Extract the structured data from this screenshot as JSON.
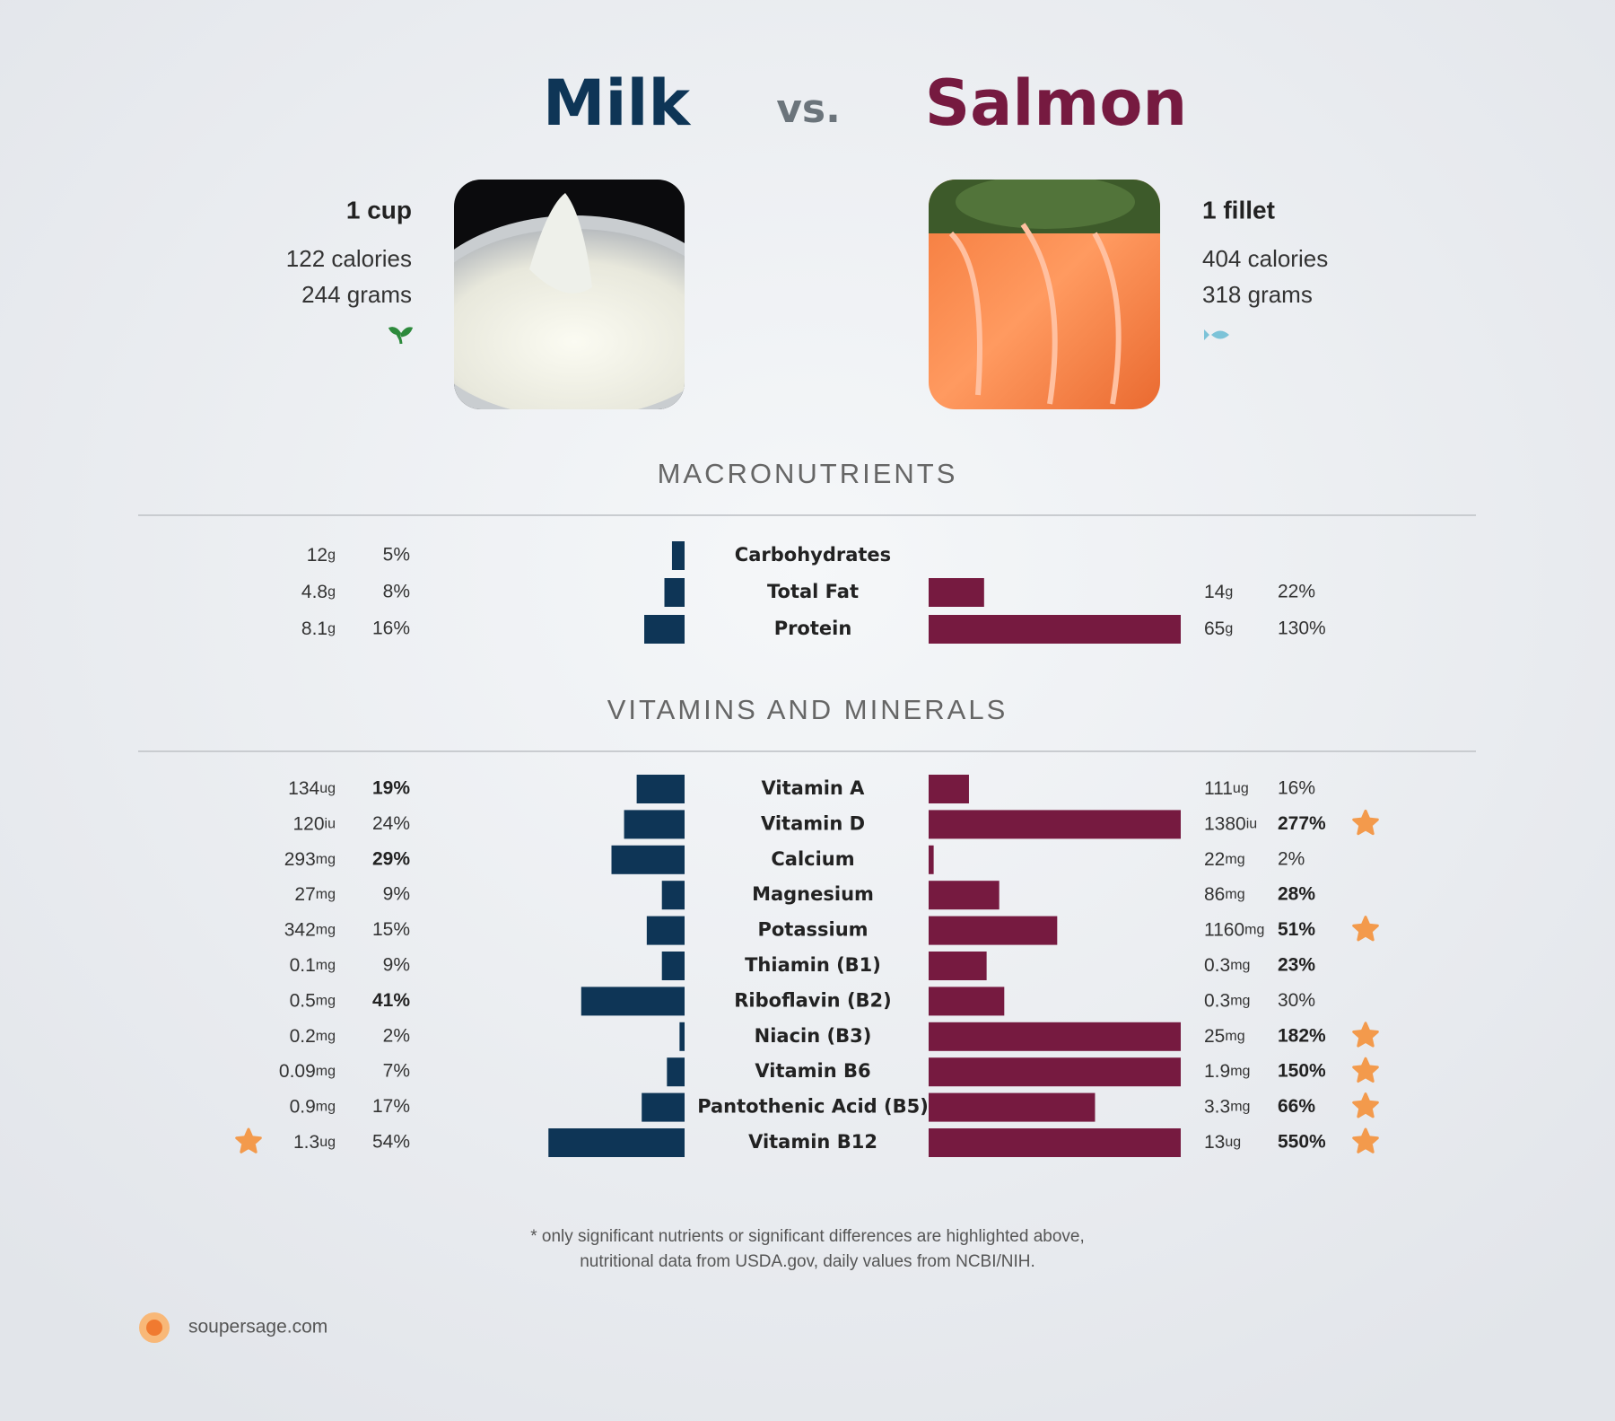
{
  "header": {
    "left": "Milk",
    "vs": "vs.",
    "right": "Salmon"
  },
  "foods": [
    {
      "serving": "1 cup",
      "calories": "122 calories",
      "grams": "244 grams",
      "color": "#0e3556"
    },
    {
      "serving": "1 fillet",
      "calories": "404 calories",
      "grams": "318 grams",
      "color": "#761a40"
    }
  ],
  "xlim": [
    0,
    100
  ],
  "sections": [
    {
      "title": "MACRONUTRIENTS",
      "rows": [
        {
          "name": "Carbohydrates",
          "left": {
            "amount": 12,
            "unit": "g",
            "pct": 5,
            "pct_label": "5%",
            "bold": false,
            "star": false
          },
          "right": null
        },
        {
          "name": "Total Fat",
          "left": {
            "amount": 4.8,
            "unit": "g",
            "pct": 8,
            "pct_label": "8%",
            "bold": false,
            "star": false
          },
          "right": {
            "amount": 14,
            "unit": "g",
            "pct": 22,
            "pct_label": "22%",
            "bold": false,
            "star": false
          }
        },
        {
          "name": "Protein",
          "left": {
            "amount": 8.1,
            "unit": "g",
            "pct": 16,
            "pct_label": "16%",
            "bold": false,
            "star": false
          },
          "right": {
            "amount": 65,
            "unit": "g",
            "pct": 130,
            "pct_label": "130%",
            "bold": false,
            "star": false
          }
        }
      ]
    },
    {
      "title": "VITAMINS AND MINERALS",
      "rows": [
        {
          "name": "Vitamin A",
          "left": {
            "amount": 134,
            "unit": "ug",
            "pct": 19,
            "pct_label": "19%",
            "bold": true,
            "star": false
          },
          "right": {
            "amount": 111,
            "unit": "ug",
            "pct": 16,
            "pct_label": "16%",
            "bold": false,
            "star": false
          }
        },
        {
          "name": "Vitamin D",
          "left": {
            "amount": 120,
            "unit": "iu",
            "pct": 24,
            "pct_label": "24%",
            "bold": false,
            "star": false
          },
          "right": {
            "amount": 1380,
            "unit": "iu",
            "pct": 277,
            "pct_label": "277%",
            "bold": true,
            "star": true
          }
        },
        {
          "name": "Calcium",
          "left": {
            "amount": 293,
            "unit": "mg",
            "pct": 29,
            "pct_label": "29%",
            "bold": true,
            "star": false
          },
          "right": {
            "amount": 22,
            "unit": "mg",
            "pct": 2,
            "pct_label": "2%",
            "bold": false,
            "star": false
          }
        },
        {
          "name": "Magnesium",
          "left": {
            "amount": 27,
            "unit": "mg",
            "pct": 9,
            "pct_label": "9%",
            "bold": false,
            "star": false
          },
          "right": {
            "amount": 86,
            "unit": "mg",
            "pct": 28,
            "pct_label": "28%",
            "bold": true,
            "star": false
          }
        },
        {
          "name": "Potassium",
          "left": {
            "amount": 342,
            "unit": "mg",
            "pct": 15,
            "pct_label": "15%",
            "bold": false,
            "star": false
          },
          "right": {
            "amount": 1160,
            "unit": "mg",
            "pct": 51,
            "pct_label": "51%",
            "bold": true,
            "star": true
          }
        },
        {
          "name": "Thiamin (B1)",
          "left": {
            "amount": 0.1,
            "unit": "mg",
            "pct": 9,
            "pct_label": "9%",
            "bold": false,
            "star": false
          },
          "right": {
            "amount": 0.3,
            "unit": "mg",
            "pct": 23,
            "pct_label": "23%",
            "bold": true,
            "star": false
          }
        },
        {
          "name": "Riboflavin (B2)",
          "left": {
            "amount": 0.5,
            "unit": "mg",
            "pct": 41,
            "pct_label": "41%",
            "bold": true,
            "star": false
          },
          "right": {
            "amount": 0.3,
            "unit": "mg",
            "pct": 30,
            "pct_label": "30%",
            "bold": false,
            "star": false
          }
        },
        {
          "name": "Niacin (B3)",
          "left": {
            "amount": 0.2,
            "unit": "mg",
            "pct": 2,
            "pct_label": "2%",
            "bold": false,
            "star": false
          },
          "right": {
            "amount": 25,
            "unit": "mg",
            "pct": 182,
            "pct_label": "182%",
            "bold": true,
            "star": true
          }
        },
        {
          "name": "Vitamin B6",
          "left": {
            "amount": 0.09,
            "unit": "mg",
            "pct": 7,
            "pct_label": "7%",
            "bold": false,
            "star": false
          },
          "right": {
            "amount": 1.9,
            "unit": "mg",
            "pct": 150,
            "pct_label": "150%",
            "bold": true,
            "star": true
          }
        },
        {
          "name": "Pantothenic Acid (B5)",
          "left": {
            "amount": 0.9,
            "unit": "mg",
            "pct": 17,
            "pct_label": "17%",
            "bold": false,
            "star": false
          },
          "right": {
            "amount": 3.3,
            "unit": "mg",
            "pct": 66,
            "pct_label": "66%",
            "bold": true,
            "star": true
          }
        },
        {
          "name": "Vitamin B12",
          "left": {
            "amount": 1.3,
            "unit": "ug",
            "pct": 54,
            "pct_label": "54%",
            "bold": false,
            "star": true
          },
          "right": {
            "amount": 13,
            "unit": "ug",
            "pct": 550,
            "pct_label": "550%",
            "bold": true,
            "star": true
          }
        }
      ]
    }
  ],
  "footnote": [
    "* only significant nutrients or significant differences are highlighted above,",
    "nutritional data from USDA.gov, daily values from NCBI/NIH."
  ],
  "brand": "soupersage.com"
}
